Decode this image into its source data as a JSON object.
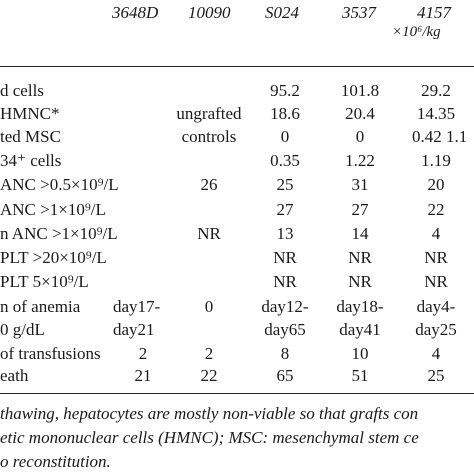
{
  "header": {
    "columns": [
      "3648D",
      "10090",
      "S024",
      "3537",
      "4157"
    ],
    "unit": "×10⁶/kg"
  },
  "rows": [
    {
      "label": "d cells",
      "c0": "",
      "c1": "",
      "c2": "95.2",
      "c3": "101.8",
      "c4": "29.2"
    },
    {
      "label": "HMNC*",
      "c0": "",
      "c1": "ungrafted",
      "c2": "18.6",
      "c3": "20.4",
      "c4": "14.35"
    },
    {
      "label": "ted MSC",
      "c0": "",
      "c1": "controls",
      "c2": "0",
      "c3": "0",
      "c4": "0.42 1.1"
    },
    {
      "label": "34⁺ cells",
      "c0": "",
      "c1": "",
      "c2": "0.35",
      "c3": "1.22",
      "c4": "1.19"
    },
    {
      "label": "ANC >0.5×10⁹/L",
      "c0": "",
      "c1": "26",
      "c2": "25",
      "c3": "31",
      "c4": "20"
    },
    {
      "label": "ANC >1×10⁹/L",
      "c0": "",
      "c1": "",
      "c2": "27",
      "c3": "27",
      "c4": "22"
    },
    {
      "label": "n ANC >1×10⁹/L",
      "c0": "",
      "c1": "NR",
      "c2": "13",
      "c3": "14",
      "c4": "4"
    },
    {
      "label": "PLT >20×10⁹/L",
      "c0": "",
      "c1": "",
      "c2": "NR",
      "c3": "NR",
      "c4": "NR"
    },
    {
      "label": "PLT  5×10⁹/L",
      "c0": "",
      "c1": "",
      "c2": "NR",
      "c3": "NR",
      "c4": "NR"
    },
    {
      "label": "n of anemia",
      "c0": "day17-",
      "c1": "0",
      "c2": "day12-",
      "c3": "day18-",
      "c4": "day4-"
    },
    {
      "label": "0 g/dL",
      "c0": "day21",
      "c1": "",
      "c2": "day65",
      "c3": "day41",
      "c4": "day25"
    },
    {
      "label": "of transfusions",
      "c0": "2",
      "c1": "2",
      "c2": "8",
      "c3": "10",
      "c4": "4"
    },
    {
      "label": "eath",
      "c0": "21",
      "c1": "22",
      "c2": "65",
      "c3": "51",
      "c4": "25"
    }
  ],
  "footnotes": [
    " thawing, hepatocytes are mostly non-viable so that grafts con",
    "etic mononuclear cells (HMNC); MSC: mesenchymal stem ce",
    "o reconstitution."
  ]
}
